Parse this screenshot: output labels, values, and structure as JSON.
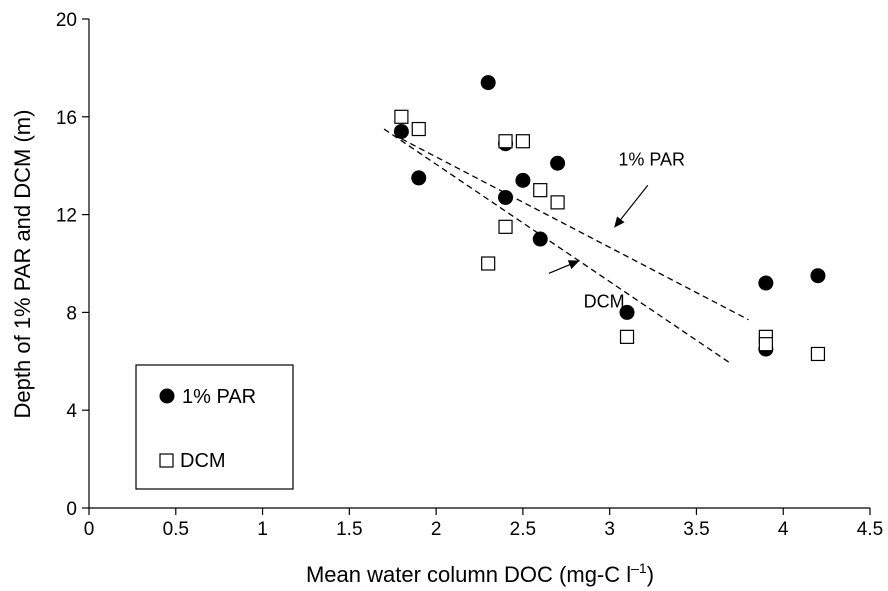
{
  "chart_data": {
    "type": "scatter",
    "xlabel_main": "Mean water column DOC (mg-C l",
    "xlabel_sup": "–1",
    "xlabel_close": ")",
    "ylabel": "Depth of 1% PAR and DCM (m)",
    "xlim": [
      0,
      4.5
    ],
    "ylim": [
      0,
      20
    ],
    "xticks": [
      0,
      0.5,
      1,
      1.5,
      2,
      2.5,
      3,
      3.5,
      4,
      4.5
    ],
    "yticks": [
      0,
      4,
      8,
      12,
      16,
      20
    ],
    "xtick_labels": [
      "0",
      "0.5",
      "1",
      "1.5",
      "2",
      "2.5",
      "3",
      "3.5",
      "4",
      "4.5"
    ],
    "ytick_labels": [
      "0",
      "4",
      "8",
      "12",
      "16",
      "20"
    ],
    "legend_position": "bottom-left",
    "series": [
      {
        "name": "1% PAR",
        "marker": "filled-circle",
        "color": "#000000",
        "points": [
          {
            "x": 1.8,
            "y": 15.4
          },
          {
            "x": 1.9,
            "y": 13.5
          },
          {
            "x": 2.3,
            "y": 17.4
          },
          {
            "x": 2.4,
            "y": 14.9
          },
          {
            "x": 2.4,
            "y": 12.7
          },
          {
            "x": 2.5,
            "y": 13.4
          },
          {
            "x": 2.6,
            "y": 11.0
          },
          {
            "x": 2.7,
            "y": 14.1
          },
          {
            "x": 3.1,
            "y": 8.0
          },
          {
            "x": 3.9,
            "y": 9.2
          },
          {
            "x": 3.9,
            "y": 6.5
          },
          {
            "x": 4.2,
            "y": 9.5
          }
        ],
        "fit": {
          "x": [
            1.8,
            3.8
          ],
          "y": [
            15.1,
            7.7
          ]
        }
      },
      {
        "name": "DCM",
        "marker": "open-square",
        "color": "#000000",
        "points": [
          {
            "x": 1.8,
            "y": 16.0
          },
          {
            "x": 1.9,
            "y": 15.5
          },
          {
            "x": 2.3,
            "y": 10.0
          },
          {
            "x": 2.4,
            "y": 15.0
          },
          {
            "x": 2.4,
            "y": 11.5
          },
          {
            "x": 2.5,
            "y": 15.0
          },
          {
            "x": 2.6,
            "y": 13.0
          },
          {
            "x": 2.7,
            "y": 12.5
          },
          {
            "x": 3.1,
            "y": 7.0
          },
          {
            "x": 3.9,
            "y": 7.0
          },
          {
            "x": 3.9,
            "y": 6.7
          },
          {
            "x": 4.2,
            "y": 6.3
          }
        ],
        "fit": {
          "x": [
            1.7,
            3.7
          ],
          "y": [
            15.5,
            5.9
          ]
        }
      }
    ],
    "annotations": [
      {
        "text": "1% PAR",
        "x": 3.05,
        "y": 14.0,
        "arrow_from": [
          3.22,
          13.2
        ],
        "arrow_to": [
          3.03,
          11.5
        ]
      },
      {
        "text": "DCM",
        "x": 2.85,
        "y": 8.2,
        "arrow_from": [
          2.65,
          9.6
        ],
        "arrow_to": [
          2.82,
          10.1
        ]
      }
    ]
  }
}
